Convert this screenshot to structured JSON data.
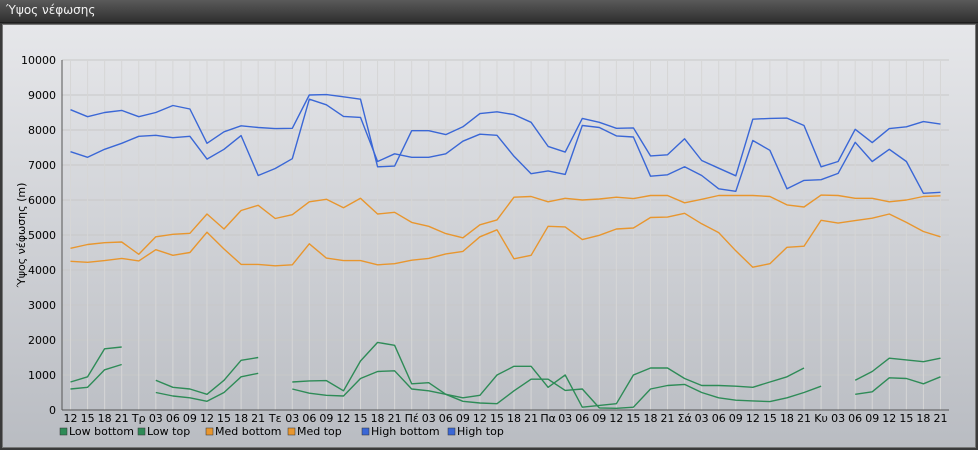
{
  "window": {
    "title": "Ύψος νέφωσης"
  },
  "chart_data": {
    "type": "line",
    "title": "",
    "ylabel": "Ύψος νέφωσης (m)",
    "ylim": [
      0,
      10000
    ],
    "yticks": [
      0,
      1000,
      2000,
      3000,
      4000,
      5000,
      6000,
      7000,
      8000,
      9000,
      10000
    ],
    "grid": true,
    "legend_position": "bottom-left",
    "x_labels": [
      "12",
      "15",
      "18",
      "21",
      "Τρ",
      "03",
      "06",
      "09",
      "12",
      "15",
      "18",
      "21",
      "Τε",
      "03",
      "06",
      "09",
      "12",
      "15",
      "18",
      "21",
      "Πέ",
      "03",
      "06",
      "09",
      "12",
      "15",
      "18",
      "21",
      "Πα",
      "03",
      "06",
      "09",
      "12",
      "15",
      "18",
      "21",
      "Σά",
      "03",
      "06",
      "09",
      "12",
      "15",
      "18",
      "21",
      "Κυ",
      "03",
      "06",
      "09",
      "12",
      "15",
      "18",
      "21"
    ],
    "series": [
      {
        "name": "Low bottom",
        "color": "#2e8b57",
        "values": [
          600,
          650,
          1150,
          1300,
          null,
          500,
          400,
          350,
          250,
          500,
          950,
          1050,
          null,
          600,
          480,
          420,
          400,
          900,
          1100,
          1120,
          600,
          550,
          450,
          250,
          200,
          180,
          550,
          880,
          880,
          560,
          600,
          60,
          50,
          80,
          600,
          700,
          730,
          500,
          350,
          280,
          260,
          240,
          350,
          500,
          680,
          null,
          450,
          520,
          920,
          900,
          750,
          950
        ]
      },
      {
        "name": "Low top",
        "color": "#2e8b57",
        "values": [
          800,
          950,
          1750,
          1800,
          null,
          850,
          650,
          600,
          450,
          850,
          1420,
          1500,
          null,
          800,
          830,
          840,
          550,
          1400,
          1930,
          1850,
          750,
          780,
          450,
          350,
          420,
          1000,
          1250,
          1250,
          650,
          1000,
          80,
          130,
          180,
          1000,
          1200,
          1200,
          900,
          700,
          700,
          680,
          650,
          800,
          950,
          1200,
          null,
          null,
          850,
          1100,
          1480,
          1430,
          1380,
          1480
        ]
      },
      {
        "name": "Med bottom",
        "color": "#e8962e",
        "values": [
          4250,
          4220,
          4270,
          4330,
          4260,
          4580,
          4420,
          4500,
          5080,
          4600,
          4160,
          4160,
          4120,
          4150,
          4750,
          4340,
          4270,
          4270,
          4150,
          4180,
          4280,
          4330,
          4460,
          4530,
          4950,
          5150,
          4320,
          4420,
          5250,
          5230,
          4870,
          4990,
          5170,
          5200,
          5500,
          5510,
          5620,
          5320,
          5070,
          4550,
          4080,
          4180,
          4650,
          4680,
          5420,
          5340,
          5410,
          5480,
          5600,
          5360,
          5100,
          4950
        ]
      },
      {
        "name": "Med top",
        "color": "#e8962e",
        "values": [
          4620,
          4730,
          4780,
          4800,
          4450,
          4950,
          5020,
          5050,
          5600,
          5170,
          5700,
          5850,
          5470,
          5580,
          5950,
          6020,
          5780,
          6050,
          5600,
          5650,
          5360,
          5250,
          5040,
          4920,
          5290,
          5430,
          6080,
          6100,
          5950,
          6050,
          6000,
          6030,
          6080,
          6040,
          6130,
          6130,
          5920,
          6020,
          6130,
          6130,
          6130,
          6100,
          5860,
          5800,
          6140,
          6130,
          6050,
          6050,
          5950,
          6000,
          6100,
          6120
        ]
      },
      {
        "name": "High bottom",
        "color": "#3a67d6",
        "values": [
          7380,
          7220,
          7450,
          7620,
          7820,
          7850,
          7780,
          7820,
          7170,
          7450,
          7840,
          6700,
          6900,
          7180,
          8880,
          8720,
          8390,
          8360,
          7100,
          7320,
          7220,
          7220,
          7320,
          7680,
          7880,
          7850,
          7250,
          6750,
          6830,
          6730,
          8130,
          8070,
          7830,
          7800,
          6680,
          6720,
          6950,
          6700,
          6320,
          6250,
          7700,
          7420,
          6320,
          6560,
          6580,
          6760,
          7650,
          7100,
          7450,
          7100,
          6190,
          6220
        ]
      },
      {
        "name": "High top",
        "color": "#3a67d6",
        "values": [
          8580,
          8380,
          8500,
          8560,
          8380,
          8500,
          8700,
          8600,
          7620,
          7950,
          8120,
          8070,
          8040,
          8050,
          9000,
          9010,
          8950,
          8880,
          6950,
          6970,
          7980,
          7980,
          7870,
          8090,
          8470,
          8520,
          8440,
          8220,
          7530,
          7370,
          8330,
          8220,
          8050,
          8060,
          7260,
          7290,
          7750,
          7130,
          6910,
          6690,
          8310,
          8330,
          8340,
          8130,
          6950,
          7100,
          8020,
          7640,
          8040,
          8090,
          8240,
          8170
        ]
      }
    ]
  }
}
